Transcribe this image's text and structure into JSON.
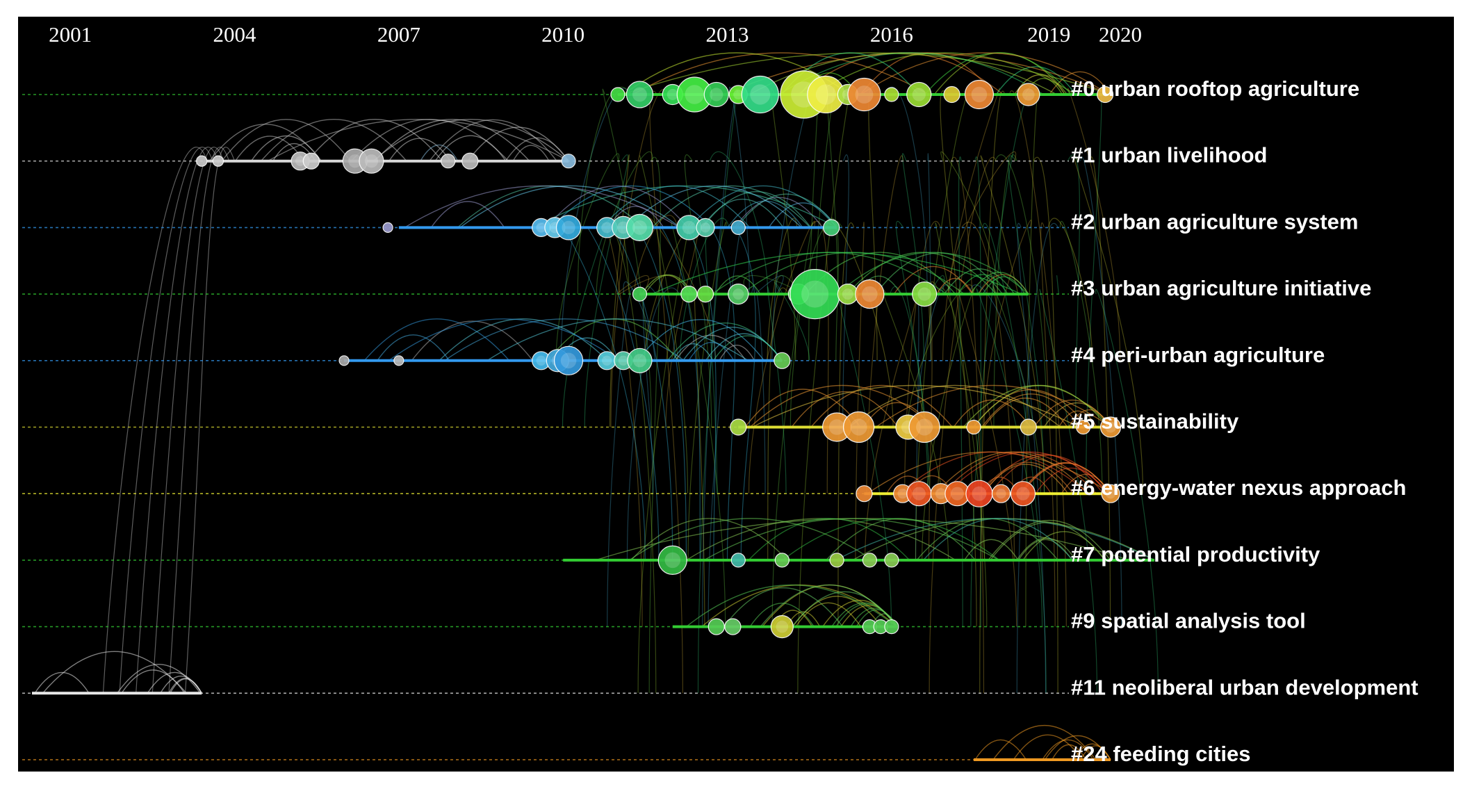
{
  "chart_data": {
    "type": "timeline",
    "title": "",
    "xlabel": "",
    "ylabel": "",
    "xlim": [
      2000.3,
      2020
    ],
    "year_ticks": [
      {
        "year": 2001,
        "label": "2001"
      },
      {
        "year": 2004,
        "label": "2004"
      },
      {
        "year": 2007,
        "label": "2007"
      },
      {
        "year": 2010,
        "label": "2010"
      },
      {
        "year": 2013,
        "label": "2013"
      },
      {
        "year": 2016,
        "label": "2016"
      },
      {
        "year": 2019,
        "label": "2019"
      },
      {
        "year": 2020,
        "label": "2020"
      }
    ],
    "clusters": [
      {
        "id": 0,
        "label": "#0 urban rooftop agriculture",
        "color": "#33cc33",
        "span": [
          2011.0,
          2020.0
        ],
        "nodes": [
          {
            "year": 2011.0,
            "size": 0.2,
            "color": "#44dd44"
          },
          {
            "year": 2011.4,
            "size": 0.5,
            "color": "#33cc66"
          },
          {
            "year": 2012.0,
            "size": 0.35,
            "color": "#33dd55"
          },
          {
            "year": 2012.4,
            "size": 0.7,
            "color": "#44ee44"
          },
          {
            "year": 2012.8,
            "size": 0.45,
            "color": "#33cc55"
          },
          {
            "year": 2013.2,
            "size": 0.3,
            "color": "#66ee33"
          },
          {
            "year": 2013.6,
            "size": 0.75,
            "color": "#33dd88"
          },
          {
            "year": 2014.4,
            "size": 1.0,
            "color": "#ccee33"
          },
          {
            "year": 2014.8,
            "size": 0.75,
            "color": "#eeee44"
          },
          {
            "year": 2015.2,
            "size": 0.35,
            "color": "#aadd44"
          },
          {
            "year": 2015.5,
            "size": 0.65,
            "color": "#ee8833"
          },
          {
            "year": 2016.0,
            "size": 0.2,
            "color": "#aadd33"
          },
          {
            "year": 2016.5,
            "size": 0.45,
            "color": "#99dd33"
          },
          {
            "year": 2017.1,
            "size": 0.25,
            "color": "#ddcc33"
          },
          {
            "year": 2017.6,
            "size": 0.55,
            "color": "#ee8833"
          },
          {
            "year": 2018.5,
            "size": 0.4,
            "color": "#ee9933"
          },
          {
            "year": 2019.9,
            "size": 0.25,
            "color": "#eebb44"
          }
        ]
      },
      {
        "id": 1,
        "label": "#1 urban livelihood",
        "color": "#d8d8d8",
        "span": [
          2003.5,
          2010.1
        ],
        "nodes": [
          {
            "year": 2003.4,
            "size": 0.12,
            "color": "#cccccc"
          },
          {
            "year": 2003.7,
            "size": 0.12,
            "color": "#cccccc"
          },
          {
            "year": 2005.2,
            "size": 0.3,
            "color": "#bbbbbb"
          },
          {
            "year": 2005.4,
            "size": 0.25,
            "color": "#cccccc"
          },
          {
            "year": 2006.2,
            "size": 0.45,
            "color": "#aaaaaa"
          },
          {
            "year": 2006.5,
            "size": 0.45,
            "color": "#bbbbbb"
          },
          {
            "year": 2007.9,
            "size": 0.2,
            "color": "#bbbbbb"
          },
          {
            "year": 2008.3,
            "size": 0.25,
            "color": "#bbbbbb"
          },
          {
            "year": 2010.1,
            "size": 0.2,
            "color": "#88bbdd"
          }
        ]
      },
      {
        "id": 2,
        "label": "#2 urban agriculture system",
        "color": "#3399ee",
        "span": [
          2007.0,
          2015.0
        ],
        "nodes": [
          {
            "year": 2006.8,
            "size": 0.1,
            "color": "#9999cc"
          },
          {
            "year": 2009.6,
            "size": 0.3,
            "color": "#55bbee"
          },
          {
            "year": 2009.85,
            "size": 0.35,
            "color": "#66ccee"
          },
          {
            "year": 2010.1,
            "size": 0.45,
            "color": "#33aadd"
          },
          {
            "year": 2010.8,
            "size": 0.35,
            "color": "#44bbcc"
          },
          {
            "year": 2011.1,
            "size": 0.4,
            "color": "#55ccbb"
          },
          {
            "year": 2011.4,
            "size": 0.5,
            "color": "#55ddaa"
          },
          {
            "year": 2012.3,
            "size": 0.45,
            "color": "#44ccaa"
          },
          {
            "year": 2012.6,
            "size": 0.3,
            "color": "#55ccaa"
          },
          {
            "year": 2013.2,
            "size": 0.2,
            "color": "#44aacc"
          },
          {
            "year": 2014.9,
            "size": 0.25,
            "color": "#44cc77"
          }
        ]
      },
      {
        "id": 3,
        "label": "#3 urban agriculture initiative",
        "color": "#33cc33",
        "span": [
          2011.4,
          2018.5
        ],
        "nodes": [
          {
            "year": 2011.4,
            "size": 0.2,
            "color": "#44cc55"
          },
          {
            "year": 2012.3,
            "size": 0.25,
            "color": "#55dd55"
          },
          {
            "year": 2012.6,
            "size": 0.25,
            "color": "#66dd44"
          },
          {
            "year": 2013.2,
            "size": 0.35,
            "color": "#55cc66"
          },
          {
            "year": 2014.3,
            "size": 0.35,
            "color": "#55dd55"
          },
          {
            "year": 2014.6,
            "size": 1.05,
            "color": "#33dd55"
          },
          {
            "year": 2015.2,
            "size": 0.35,
            "color": "#99dd44"
          },
          {
            "year": 2015.6,
            "size": 0.55,
            "color": "#ee8833"
          },
          {
            "year": 2016.6,
            "size": 0.45,
            "color": "#88dd44"
          }
        ]
      },
      {
        "id": 4,
        "label": "#4 peri-urban agriculture",
        "color": "#3399ee",
        "span": [
          2006.0,
          2014.0
        ],
        "nodes": [
          {
            "year": 2006.0,
            "size": 0.1,
            "color": "#aaaaaa"
          },
          {
            "year": 2007.0,
            "size": 0.1,
            "color": "#bbbbbb"
          },
          {
            "year": 2009.6,
            "size": 0.3,
            "color": "#44bbee"
          },
          {
            "year": 2009.9,
            "size": 0.4,
            "color": "#44aadd"
          },
          {
            "year": 2010.1,
            "size": 0.55,
            "color": "#3399dd"
          },
          {
            "year": 2010.8,
            "size": 0.3,
            "color": "#55ccdd"
          },
          {
            "year": 2011.1,
            "size": 0.3,
            "color": "#55ccaa"
          },
          {
            "year": 2011.4,
            "size": 0.45,
            "color": "#44cc88"
          },
          {
            "year": 2014.0,
            "size": 0.25,
            "color": "#66cc55"
          }
        ]
      },
      {
        "id": 5,
        "label": "#5 sustainability",
        "color": "#dddd33",
        "span": [
          2013.2,
          2020.0
        ],
        "nodes": [
          {
            "year": 2013.2,
            "size": 0.25,
            "color": "#aadd44"
          },
          {
            "year": 2015.0,
            "size": 0.55,
            "color": "#ee9933"
          },
          {
            "year": 2015.4,
            "size": 0.6,
            "color": "#ee9933"
          },
          {
            "year": 2016.3,
            "size": 0.45,
            "color": "#eecc44"
          },
          {
            "year": 2016.6,
            "size": 0.6,
            "color": "#ee9933"
          },
          {
            "year": 2017.5,
            "size": 0.2,
            "color": "#ee9933"
          },
          {
            "year": 2018.5,
            "size": 0.25,
            "color": "#ddbb44"
          },
          {
            "year": 2019.5,
            "size": 0.2,
            "color": "#ee9933"
          },
          {
            "year": 2020.0,
            "size": 0.35,
            "color": "#ee9933"
          }
        ]
      },
      {
        "id": 6,
        "label": "#6 energy-water nexus approach",
        "color": "#eeee33",
        "span": [
          2015.5,
          2020.0
        ],
        "nodes": [
          {
            "year": 2015.5,
            "size": 0.25,
            "color": "#ee8833"
          },
          {
            "year": 2016.2,
            "size": 0.3,
            "color": "#ee8833"
          },
          {
            "year": 2016.5,
            "size": 0.45,
            "color": "#ee5522"
          },
          {
            "year": 2016.9,
            "size": 0.35,
            "color": "#ee8833"
          },
          {
            "year": 2017.2,
            "size": 0.45,
            "color": "#ee6622"
          },
          {
            "year": 2017.6,
            "size": 0.5,
            "color": "#ee4422"
          },
          {
            "year": 2018.0,
            "size": 0.3,
            "color": "#ee7733"
          },
          {
            "year": 2018.4,
            "size": 0.45,
            "color": "#ee5522"
          },
          {
            "year": 2020.0,
            "size": 0.3,
            "color": "#ee9933"
          }
        ]
      },
      {
        "id": 7,
        "label": "#7 potential productivity",
        "color": "#33cc33",
        "span": [
          2010.0,
          2020.8
        ],
        "nodes": [
          {
            "year": 2012.0,
            "size": 0.55,
            "color": "#33bb44"
          },
          {
            "year": 2013.2,
            "size": 0.2,
            "color": "#44bbaa"
          },
          {
            "year": 2014.0,
            "size": 0.2,
            "color": "#66cc55"
          },
          {
            "year": 2015.0,
            "size": 0.2,
            "color": "#99cc44"
          },
          {
            "year": 2015.6,
            "size": 0.2,
            "color": "#88cc55"
          },
          {
            "year": 2016.0,
            "size": 0.2,
            "color": "#88cc55"
          }
        ]
      },
      {
        "id": 9,
        "label": "#9 spatial analysis tool",
        "color": "#33cc33",
        "span": [
          2012.0,
          2016.1
        ],
        "nodes": [
          {
            "year": 2012.8,
            "size": 0.25,
            "color": "#55cc55"
          },
          {
            "year": 2013.1,
            "size": 0.25,
            "color": "#66cc66"
          },
          {
            "year": 2014.0,
            "size": 0.4,
            "color": "#cccc33"
          },
          {
            "year": 2015.6,
            "size": 0.2,
            "color": "#55cc55"
          },
          {
            "year": 2015.8,
            "size": 0.2,
            "color": "#55cc55"
          },
          {
            "year": 2016.0,
            "size": 0.2,
            "color": "#55cc55"
          }
        ]
      },
      {
        "id": 11,
        "label": "#11 neoliberal urban development",
        "color": "#e8e8e8",
        "span": [
          2000.3,
          2003.4
        ],
        "nodes": []
      },
      {
        "id": 24,
        "label": "#24 feeding cities",
        "color": "#ee9922",
        "span": [
          2017.5,
          2020.0
        ],
        "nodes": []
      }
    ],
    "grid": false,
    "legend": "none"
  }
}
